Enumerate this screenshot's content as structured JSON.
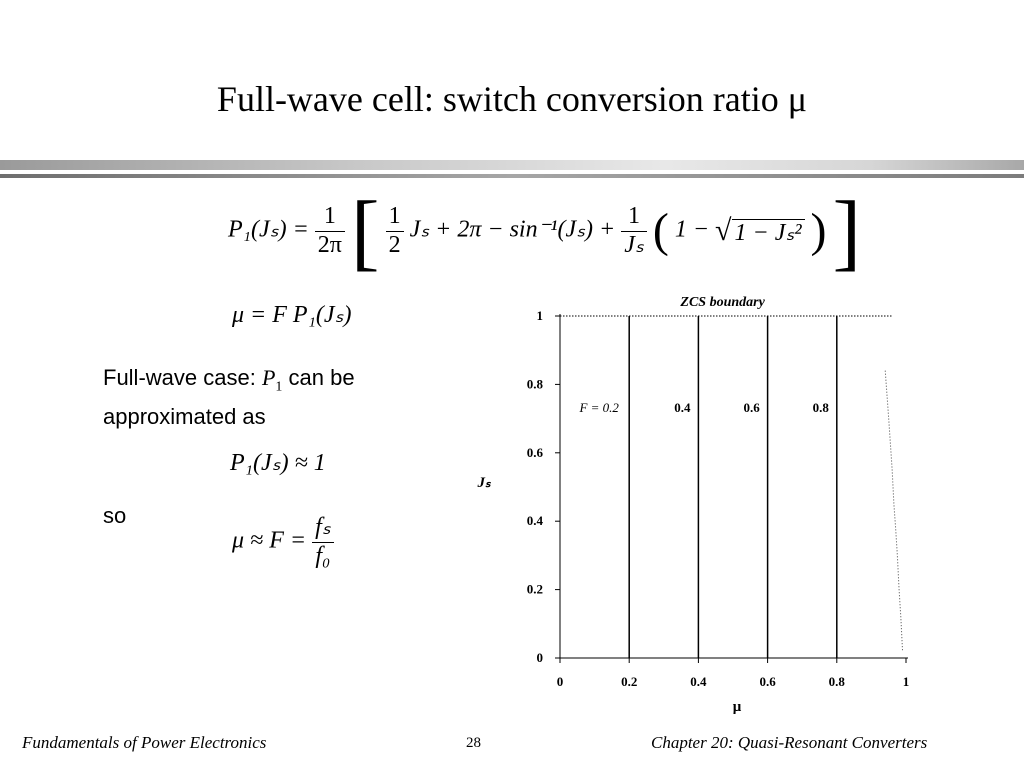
{
  "slide": {
    "title": "Full-wave cell: switch conversion ratio μ",
    "equation1": {
      "lhs": "P₁(Jₛ) =",
      "coef_num": "1",
      "coef_den": "2π",
      "t1_num": "1",
      "t1_den": "2",
      "t2": "Jₛ + 2π − sin⁻¹(Jₛ) +",
      "t3_num": "1",
      "t3_den": "Jₛ",
      "t4": "1 −",
      "radicand": "1 − Jₛ²"
    },
    "equation2": "μ = F P₁(Jₛ)",
    "text1_a": "Full-wave case: ",
    "text1_var": "P",
    "text1_sub": "1",
    "text1_b": " can be",
    "text1_c": "approximated as",
    "equation3": "P₁(Jₛ) ≈ 1",
    "text2": "so",
    "equation4_lhs": "μ ≈ F =",
    "equation4_num": "fₛ",
    "equation4_den": "f₀",
    "footer_left": "Fundamentals of Power Electronics",
    "page_number": "28",
    "footer_right": "Chapter 20:  Quasi-Resonant Converters"
  },
  "chart_data": {
    "type": "line",
    "title": "",
    "xlabel": "μ",
    "ylabel": "Jₛ",
    "xlim": [
      0,
      1
    ],
    "ylim": [
      0,
      1
    ],
    "x_ticks": [
      "0",
      "0.2",
      "0.4",
      "0.6",
      "0.8",
      "1"
    ],
    "y_ticks": [
      "0",
      "0.2",
      "0.4",
      "0.6",
      "0.8",
      "1"
    ],
    "annotation": "ZCS boundary",
    "series": [
      {
        "label": "F = 0.2",
        "x": [
          0.2,
          0.2
        ],
        "y": [
          0,
          1
        ]
      },
      {
        "label": "0.4",
        "x": [
          0.4,
          0.4
        ],
        "y": [
          0,
          1
        ]
      },
      {
        "label": "0.6",
        "x": [
          0.6,
          0.6
        ],
        "y": [
          0,
          1
        ]
      },
      {
        "label": "0.8",
        "x": [
          0.8,
          0.8
        ],
        "y": [
          0,
          1
        ]
      }
    ],
    "boundary": {
      "x": [
        0,
        0.96
      ],
      "y": [
        1,
        1
      ]
    },
    "right_curve": {
      "x": [
        0.94,
        0.95,
        0.96,
        0.965,
        0.97,
        0.975,
        0.98,
        0.985,
        0.99
      ],
      "y": [
        0.84,
        0.7,
        0.55,
        0.45,
        0.38,
        0.3,
        0.2,
        0.12,
        0.02
      ]
    },
    "grid": false
  }
}
